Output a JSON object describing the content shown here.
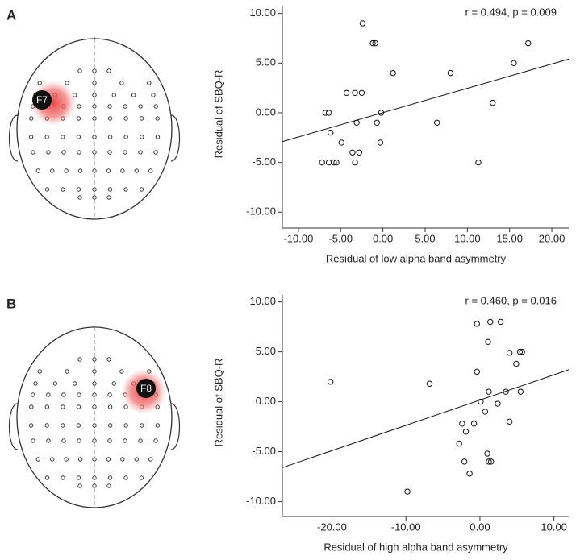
{
  "chart_data": [
    {
      "type": "scatter",
      "panel_label": "A",
      "electrode_label": "F7",
      "annotation": "r = 0.494, p = 0.009",
      "x_label": "Residual of low alpha band asymmetry",
      "y_label": "Residual of SBQ-R",
      "x": [
        -2.4,
        -1.2,
        -0.9,
        17.2,
        15.5,
        1.2,
        8.0,
        -4.3,
        -3.3,
        -2.5,
        13.0,
        -6.8,
        -6.4,
        -0.2,
        -3.1,
        -0.7,
        6.4,
        -6.2,
        -4.9,
        -0.3,
        -3.6,
        -2.8,
        -7.2,
        -6.4,
        -5.8,
        -5.5,
        -3.3,
        11.3
      ],
      "y": [
        9,
        7,
        7,
        7,
        5,
        4,
        4,
        2,
        2,
        2,
        1,
        0,
        0,
        0,
        -1,
        -1,
        -1,
        -2,
        -3,
        -3,
        -4,
        -4,
        -5,
        -5,
        -5,
        -5,
        -5,
        -5
      ],
      "fit_line": {
        "x": [
          -11.9,
          22
        ],
        "y": [
          -2.9,
          5.4
        ]
      },
      "xlim": [
        -11.9,
        22
      ],
      "ylim": [
        -11.6,
        10.7
      ],
      "xticks": [
        {
          "value": -10,
          "label": "-10.00"
        },
        {
          "value": -5,
          "label": "-5.00"
        },
        {
          "value": 0,
          "label": "0.00"
        },
        {
          "value": 5,
          "label": "5.00"
        },
        {
          "value": 10,
          "label": "10.00"
        },
        {
          "value": 15,
          "label": "15.00"
        },
        {
          "value": 20,
          "label": "20.00"
        }
      ],
      "yticks": [
        {
          "value": 10,
          "label": "10.00"
        },
        {
          "value": 5,
          "label": "5.00"
        },
        {
          "value": 0,
          "label": "0.00"
        },
        {
          "value": -5,
          "label": "-5.00"
        },
        {
          "value": -10,
          "label": "-10.00"
        }
      ]
    },
    {
      "type": "scatter",
      "panel_label": "B",
      "electrode_label": "F8",
      "annotation": "r = 0.460, p = 0.016",
      "x_label": "Residual of high alpha band asymmetry",
      "y_label": "Residual of SBQ-R",
      "x": [
        -20.2,
        -6.8,
        -9.8,
        -0.4,
        1.4,
        2.8,
        1.1,
        4.0,
        5.4,
        5.7,
        4.9,
        -0.4,
        1.2,
        3.5,
        5.5,
        0.1,
        2.4,
        0.7,
        -2.4,
        -0.8,
        4.0,
        -1.9,
        -2.8,
        1.0,
        1.2,
        1.5,
        -2.1,
        -1.4
      ],
      "y": [
        2,
        1.8,
        -9,
        7.8,
        8,
        8,
        6,
        4.9,
        5,
        5,
        3.8,
        3,
        1,
        1,
        1,
        0,
        -0.2,
        -1,
        -2.2,
        -2.2,
        -2,
        -3,
        -4.2,
        -5.2,
        -6,
        -6,
        -6,
        -7.2
      ],
      "fit_line": {
        "x": [
          -26.7,
          12.0
        ],
        "y": [
          -6.6,
          3.2
        ]
      },
      "xlim": [
        -26.7,
        12.0
      ],
      "ylim": [
        -11.5,
        10.7
      ],
      "xticks": [
        {
          "value": -20,
          "label": "-20.00"
        },
        {
          "value": -10,
          "label": "-10.00"
        },
        {
          "value": 0,
          "label": "0.00"
        },
        {
          "value": 10,
          "label": "10.00"
        }
      ],
      "yticks": [
        {
          "value": 10,
          "label": "10.00"
        },
        {
          "value": 5,
          "label": "5.00"
        },
        {
          "value": 0,
          "label": "0.00"
        },
        {
          "value": -5,
          "label": "-5.00"
        },
        {
          "value": -10,
          "label": "-10.00"
        }
      ]
    }
  ]
}
